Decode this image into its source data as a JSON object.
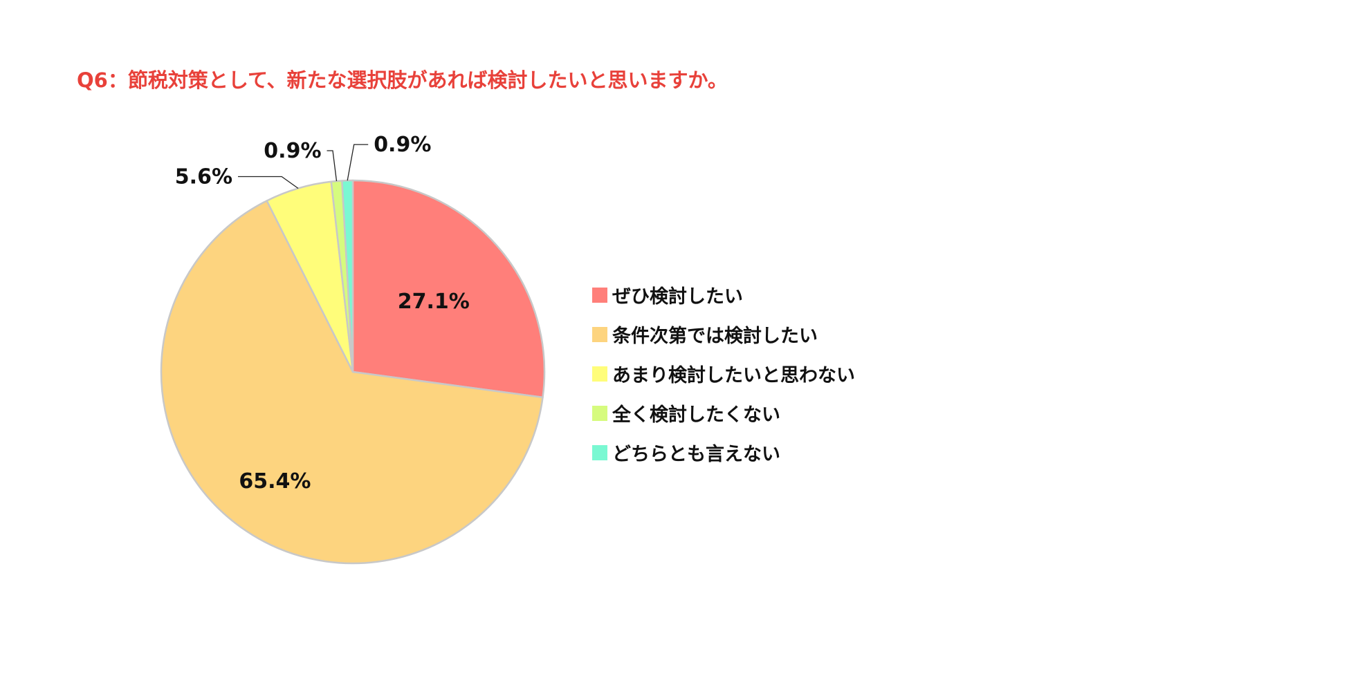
{
  "title": "Q6：節税対策として、新たな選択肢があれば検討したいと思いますか。",
  "chart_data": {
    "type": "pie",
    "title": "Q6：節税対策として、新たな選択肢があれば検討したいと思いますか。",
    "slices": [
      {
        "label": "ぜひ検討したい",
        "value": 27.1,
        "value_label": "27.1%",
        "color": "#FF7F7A"
      },
      {
        "label": "条件次第では検討したい",
        "value": 65.4,
        "value_label": "65.4%",
        "color": "#FDD47F"
      },
      {
        "label": "あまり検討したいと思わない",
        "value": 5.6,
        "value_label": "5.6%",
        "color": "#FFFD7A"
      },
      {
        "label": "全く検討したくない",
        "value": 0.9,
        "value_label": "0.9%",
        "color": "#D6FB7E"
      },
      {
        "label": "どちらとも言えない",
        "value": 0.9,
        "value_label": "0.9%",
        "color": "#7AF8D2"
      }
    ],
    "start": "12 o'clock",
    "direction": "clockwise",
    "legend_position": "right"
  }
}
